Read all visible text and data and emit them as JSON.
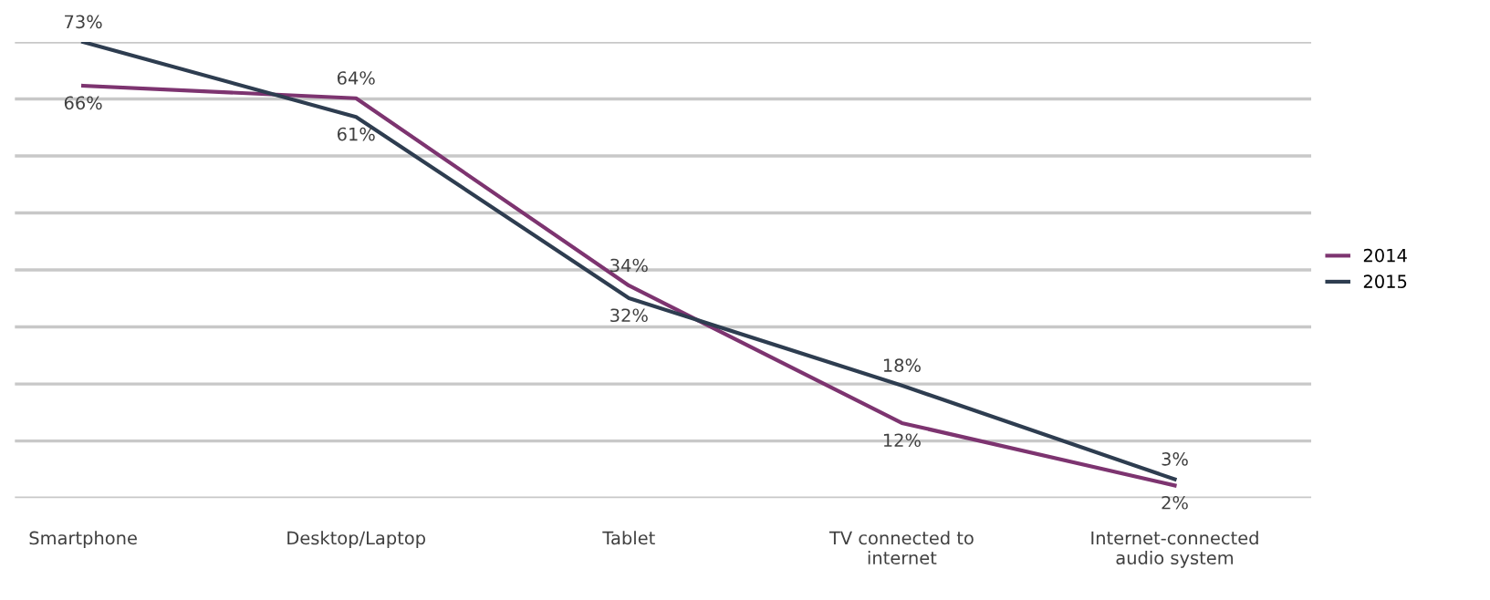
{
  "chart_data": {
    "type": "line",
    "categories": [
      "Smartphone",
      "Desktop/Laptop",
      "Tablet",
      "TV connected to\ninternet",
      "Internet-connected\naudio system"
    ],
    "series": [
      {
        "name": "2014",
        "color": "#7d3470",
        "values": [
          66,
          64,
          34,
          12,
          2
        ],
        "value_labels": [
          "66%",
          "64%",
          "34%",
          "12%",
          "2%"
        ]
      },
      {
        "name": "2015",
        "color": "#2e3d50",
        "values": [
          73,
          61,
          32,
          18,
          3
        ],
        "value_labels": [
          "73%",
          "61%",
          "32%",
          "18%",
          "3%"
        ]
      }
    ],
    "grid": "y",
    "legend": "right",
    "marker": "none",
    "line_style": "solid"
  }
}
